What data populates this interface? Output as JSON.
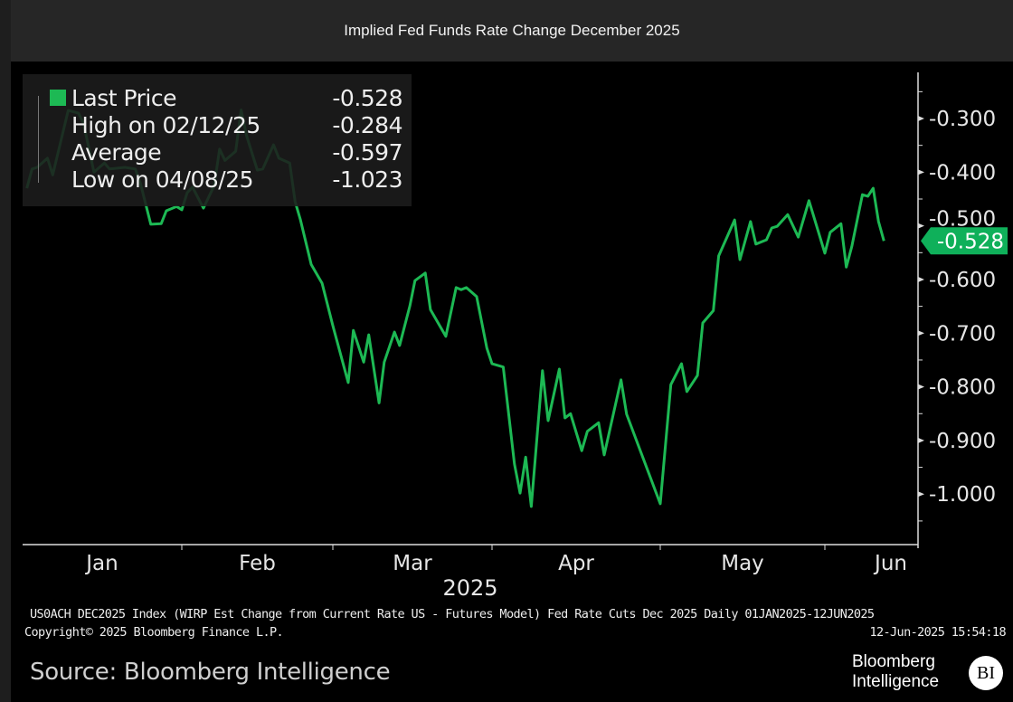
{
  "title": "Implied Fed Funds Rate Change December 2025",
  "legend": {
    "items": [
      {
        "label": "Last Price",
        "value": "-0.528"
      },
      {
        "label": "High on 02/12/25",
        "value": "-0.284"
      },
      {
        "label": "Average",
        "value": "-0.597"
      },
      {
        "label": "Low on 04/08/25",
        "value": "-1.023"
      }
    ]
  },
  "current_tag": "-0.528",
  "footer": {
    "description": "US0ACH DEC2025 Index (WIRP Est Change from Current Rate US - Futures Model) Fed Rate Cuts Dec 2025  Daily 01JAN2025-12JUN2025",
    "copyright": "Copyright© 2025 Bloomberg Finance L.P.",
    "timestamp": "12-Jun-2025 15:54:18",
    "source": "Source: Bloomberg Intelligence",
    "logo_text": [
      "Bloomberg",
      "Intelligence"
    ],
    "logo_badge": "BI"
  },
  "colors": {
    "line": "#1db954",
    "tag": "#0fb05a",
    "background": "#000000",
    "titlebar": "#262626"
  },
  "chart_data": {
    "type": "line",
    "title": "Implied Fed Funds Rate Change December 2025",
    "xlabel": "2025",
    "ylabel": "",
    "x_tick_labels": [
      "Jan",
      "Feb",
      "Mar",
      "Apr",
      "May",
      "Jun"
    ],
    "y_tick_labels": [
      "-0.300",
      "-0.400",
      "-0.500",
      "-0.600",
      "-0.700",
      "-0.800",
      "-0.900",
      "-1.000"
    ],
    "y_ticks": [
      -0.3,
      -0.4,
      -0.5,
      -0.6,
      -0.7,
      -0.8,
      -0.9,
      -1.0
    ],
    "ylim": [
      -1.094,
      -0.214
    ],
    "xlim": [
      "2025-01-01",
      "2025-06-15"
    ],
    "grid": false,
    "y_axis_side": "right",
    "legend_placement": "top-left",
    "series": [
      {
        "name": "Last Price",
        "points": [
          [
            "2025-01-02",
            -0.43
          ],
          [
            "2025-01-03",
            -0.394
          ],
          [
            "2025-01-04",
            -0.391
          ],
          [
            "2025-01-06",
            -0.374
          ],
          [
            "2025-01-07",
            -0.405
          ],
          [
            "2025-01-10",
            -0.285
          ],
          [
            "2025-01-12",
            -0.29
          ],
          [
            "2025-01-13",
            -0.31
          ],
          [
            "2025-01-15",
            -0.4
          ],
          [
            "2025-01-17",
            -0.383
          ],
          [
            "2025-01-18",
            -0.394
          ],
          [
            "2025-01-21",
            -0.391
          ],
          [
            "2025-01-23",
            -0.394
          ],
          [
            "2025-01-24",
            -0.421
          ],
          [
            "2025-01-26",
            -0.497
          ],
          [
            "2025-01-28",
            -0.496
          ],
          [
            "2025-01-29",
            -0.472
          ],
          [
            "2025-01-31",
            -0.464
          ],
          [
            "2025-02-01",
            -0.47
          ],
          [
            "2025-02-02",
            -0.438
          ],
          [
            "2025-02-03",
            -0.428
          ],
          [
            "2025-02-05",
            -0.467
          ],
          [
            "2025-02-07",
            -0.425
          ],
          [
            "2025-02-08",
            -0.357
          ],
          [
            "2025-02-09",
            -0.378
          ],
          [
            "2025-02-11",
            -0.361
          ],
          [
            "2025-02-12",
            -0.284
          ],
          [
            "2025-02-13",
            -0.332
          ],
          [
            "2025-02-15",
            -0.396
          ],
          [
            "2025-02-16",
            -0.394
          ],
          [
            "2025-02-18",
            -0.349
          ],
          [
            "2025-02-19",
            -0.374
          ],
          [
            "2025-02-21",
            -0.383
          ],
          [
            "2025-02-22",
            -0.455
          ],
          [
            "2025-02-23",
            -0.489
          ],
          [
            "2025-02-25",
            -0.572
          ],
          [
            "2025-02-27",
            -0.607
          ],
          [
            "2025-03-01",
            -0.686
          ],
          [
            "2025-03-04",
            -0.792
          ],
          [
            "2025-03-05",
            -0.695
          ],
          [
            "2025-03-07",
            -0.754
          ],
          [
            "2025-03-08",
            -0.703
          ],
          [
            "2025-03-10",
            -0.83
          ],
          [
            "2025-03-11",
            -0.754
          ],
          [
            "2025-03-13",
            -0.698
          ],
          [
            "2025-03-14",
            -0.723
          ],
          [
            "2025-03-16",
            -0.649
          ],
          [
            "2025-03-17",
            -0.602
          ],
          [
            "2025-03-19",
            -0.588
          ],
          [
            "2025-03-20",
            -0.656
          ],
          [
            "2025-03-23",
            -0.706
          ],
          [
            "2025-03-25",
            -0.615
          ],
          [
            "2025-03-26",
            -0.619
          ],
          [
            "2025-03-27",
            -0.615
          ],
          [
            "2025-03-29",
            -0.632
          ],
          [
            "2025-03-31",
            -0.728
          ],
          [
            "2025-04-01",
            -0.757
          ],
          [
            "2025-04-03",
            -0.763
          ],
          [
            "2025-04-05",
            -0.944
          ],
          [
            "2025-04-06",
            -0.998
          ],
          [
            "2025-04-07",
            -0.931
          ],
          [
            "2025-04-08",
            -1.023
          ],
          [
            "2025-04-10",
            -0.77
          ],
          [
            "2025-04-11",
            -0.863
          ],
          [
            "2025-04-13",
            -0.767
          ],
          [
            "2025-04-14",
            -0.858
          ],
          [
            "2025-04-15",
            -0.85
          ],
          [
            "2025-04-17",
            -0.919
          ],
          [
            "2025-04-18",
            -0.883
          ],
          [
            "2025-04-20",
            -0.867
          ],
          [
            "2025-04-21",
            -0.927
          ],
          [
            "2025-04-24",
            -0.787
          ],
          [
            "2025-04-25",
            -0.851
          ],
          [
            "2025-05-01",
            -1.018
          ],
          [
            "2025-05-03",
            -0.796
          ],
          [
            "2025-05-05",
            -0.757
          ],
          [
            "2025-05-06",
            -0.809
          ],
          [
            "2025-05-08",
            -0.779
          ],
          [
            "2025-05-09",
            -0.681
          ],
          [
            "2025-05-11",
            -0.658
          ],
          [
            "2025-05-12",
            -0.556
          ],
          [
            "2025-05-15",
            -0.489
          ],
          [
            "2025-05-16",
            -0.563
          ],
          [
            "2025-05-18",
            -0.492
          ],
          [
            "2025-05-19",
            -0.534
          ],
          [
            "2025-05-21",
            -0.526
          ],
          [
            "2025-05-22",
            -0.504
          ],
          [
            "2025-05-23",
            -0.501
          ],
          [
            "2025-05-25",
            -0.479
          ],
          [
            "2025-05-27",
            -0.521
          ],
          [
            "2025-05-29",
            -0.453
          ],
          [
            "2025-06-01",
            -0.551
          ],
          [
            "2025-06-02",
            -0.512
          ],
          [
            "2025-06-04",
            -0.496
          ],
          [
            "2025-06-05",
            -0.577
          ],
          [
            "2025-06-06",
            -0.539
          ],
          [
            "2025-06-08",
            -0.442
          ],
          [
            "2025-06-09",
            -0.445
          ],
          [
            "2025-06-10",
            -0.43
          ],
          [
            "2025-06-11",
            -0.492
          ],
          [
            "2025-06-12",
            -0.528
          ]
        ]
      }
    ]
  }
}
